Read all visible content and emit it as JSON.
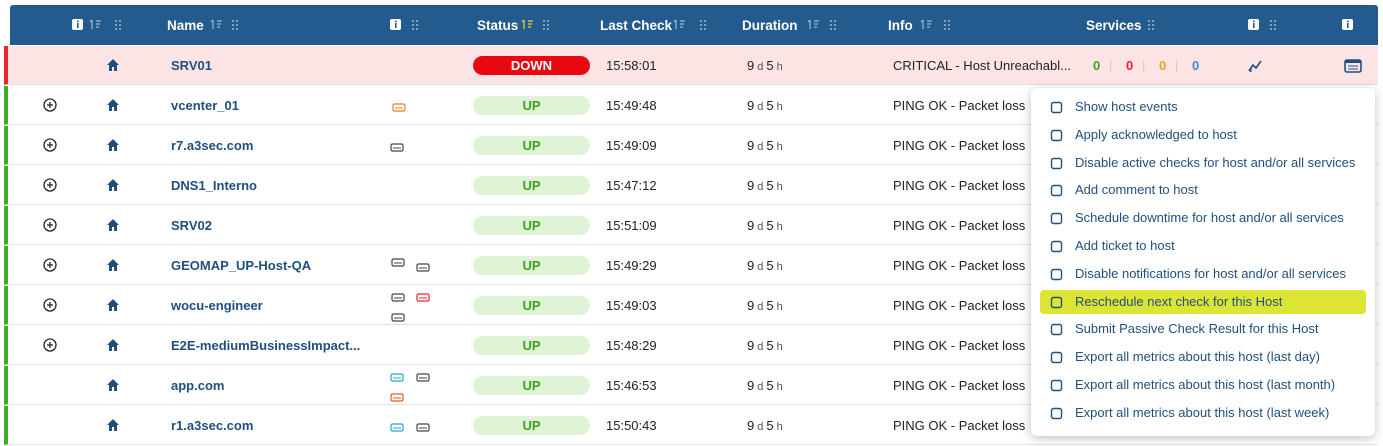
{
  "header": {
    "columns": [
      "Name",
      "Status",
      "Last Check",
      "Duration",
      "Info",
      "Services"
    ]
  },
  "rows": [
    {
      "name": "SRV01",
      "status": "DOWN",
      "last_check": "15:58:01",
      "duration": [
        "9",
        "d",
        "5",
        "h"
      ],
      "info": "CRITICAL - Host Unreachabl...",
      "services": [
        "0",
        "0",
        "0",
        "0"
      ]
    },
    {
      "name": "vcenter_01",
      "status": "UP",
      "last_check": "15:49:48",
      "duration": [
        "9",
        "d",
        "5",
        "h"
      ],
      "info": "PING OK - Packet loss"
    },
    {
      "name": "r7.a3sec.com",
      "status": "UP",
      "last_check": "15:49:09",
      "duration": [
        "9",
        "d",
        "5",
        "h"
      ],
      "info": "PING OK - Packet loss"
    },
    {
      "name": "DNS1_Interno",
      "status": "UP",
      "last_check": "15:47:12",
      "duration": [
        "9",
        "d",
        "5",
        "h"
      ],
      "info": "PING OK - Packet loss"
    },
    {
      "name": "SRV02",
      "status": "UP",
      "last_check": "15:51:09",
      "duration": [
        "9",
        "d",
        "5",
        "h"
      ],
      "info": "PING OK - Packet loss"
    },
    {
      "name": "GEOMAP_UP-Host-QA",
      "status": "UP",
      "last_check": "15:49:29",
      "duration": [
        "9",
        "d",
        "5",
        "h"
      ],
      "info": "PING OK - Packet loss"
    },
    {
      "name": "wocu-engineer",
      "status": "UP",
      "last_check": "15:49:03",
      "duration": [
        "9",
        "d",
        "5",
        "h"
      ],
      "info": "PING OK - Packet loss"
    },
    {
      "name": "E2E-mediumBusinessImpact...",
      "status": "UP",
      "last_check": "15:48:29",
      "duration": [
        "9",
        "d",
        "5",
        "h"
      ],
      "info": "PING OK - Packet loss"
    },
    {
      "name": "app.com",
      "status": "UP",
      "last_check": "15:46:53",
      "duration": [
        "9",
        "d",
        "5",
        "h"
      ],
      "info": "PING OK - Packet loss"
    },
    {
      "name": "r1.a3sec.com",
      "status": "UP",
      "last_check": "15:50:43",
      "duration": [
        "9",
        "d",
        "5",
        "h"
      ],
      "info": "PING OK - Packet loss"
    }
  ],
  "context_menu": {
    "items": [
      "Show host events",
      "Apply acknowledged to host",
      "Disable active checks for host and/or all services",
      "Add comment to host",
      "Schedule downtime for host and/or all services",
      "Add ticket to host",
      "Disable notifications for host and/or all services",
      "Reschedule next check for this Host",
      "Submit Passive Check Result for this Host",
      "Export all metrics about this host (last day)",
      "Export all metrics about this host (last month)",
      "Export all metrics about this host (last week)"
    ],
    "highlighted": 7
  }
}
